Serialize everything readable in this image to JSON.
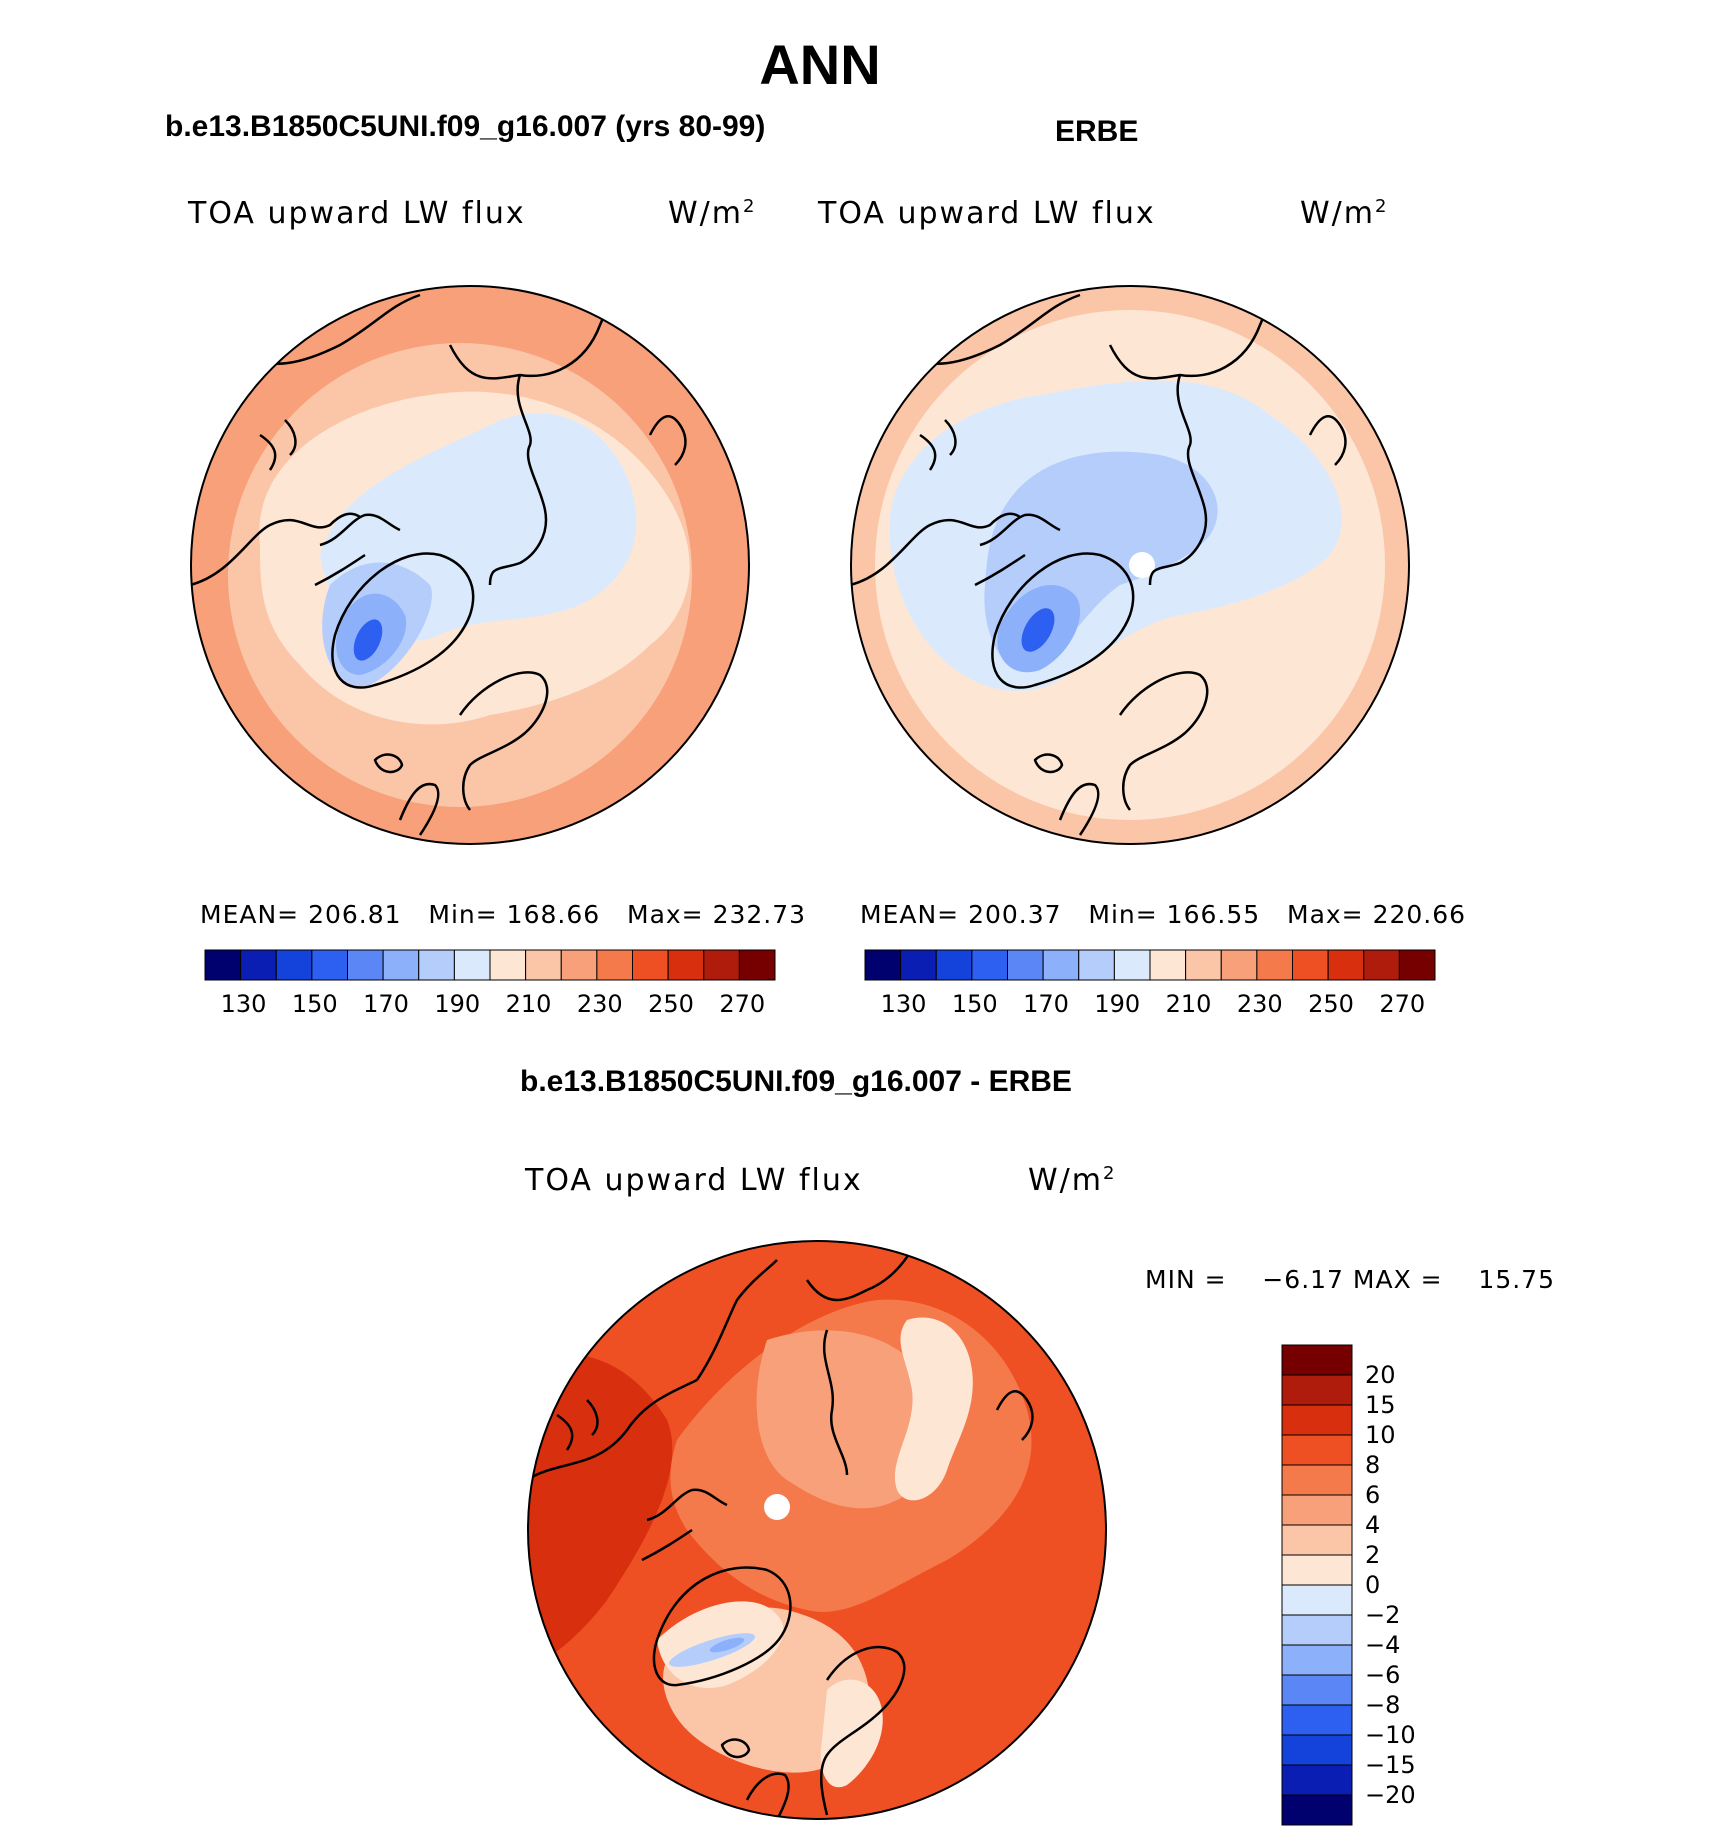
{
  "figure": {
    "season": "ANN",
    "colors": {
      "seq": [
        "#00006e",
        "#0a1eb4",
        "#1443dc",
        "#2d5ff0",
        "#5a87f5",
        "#8cb0fa",
        "#b5cdfb",
        "#daeafc",
        "#fde7d4",
        "#fbc6a8",
        "#f7a07a",
        "#f47a4c",
        "#ee4f23",
        "#d82f0f",
        "#b01c0c",
        "#760000"
      ],
      "diff": [
        "#00006e",
        "#0a1eb4",
        "#1443dc",
        "#2d5ff0",
        "#5a87f5",
        "#8cb0fa",
        "#b5cdfb",
        "#daeafc",
        "#fde7d4",
        "#fbc6a8",
        "#f7a07a",
        "#f47a4c",
        "#ee4f23",
        "#d82f0f",
        "#b01c0c",
        "#760000"
      ],
      "coast": "#000000",
      "missing": "#ffffff"
    }
  },
  "panels": [
    {
      "id": "model",
      "header": "b.e13.B1850C5UNI.f09_g16.007 (yrs 80-99)",
      "variable": "TOA upward LW flux",
      "units": "W/m",
      "units_exp": "2",
      "stats": {
        "mean_label": "MEAN=",
        "mean": "206.81",
        "min_label": "Min=",
        "min": "168.66",
        "max_label": "Max=",
        "max": "232.73"
      },
      "colorbar_ticks": [
        "130",
        "150",
        "170",
        "190",
        "210",
        "230",
        "250",
        "270"
      ]
    },
    {
      "id": "obs",
      "header": "ERBE",
      "variable": "TOA upward LW flux",
      "units": "W/m",
      "units_exp": "2",
      "stats": {
        "mean_label": "MEAN=",
        "mean": "200.37",
        "min_label": "Min=",
        "min": "166.55",
        "max_label": "Max=",
        "max": "220.66"
      },
      "colorbar_ticks": [
        "130",
        "150",
        "170",
        "190",
        "210",
        "230",
        "250",
        "270"
      ]
    }
  ],
  "difference": {
    "header": "b.e13.B1850C5UNI.f09_g16.007 - ERBE",
    "variable": "TOA upward LW flux",
    "units": "W/m",
    "units_exp": "2",
    "range_text": {
      "min_label": "MIN =",
      "min": "−6.17",
      "max_label": "MAX =",
      "max": "15.75"
    },
    "colorbar_levels": [
      "20",
      "15",
      "10",
      "8",
      "6",
      "4",
      "2",
      "0",
      "−2",
      "−4",
      "−6",
      "−8",
      "−10",
      "−15",
      "−20"
    ]
  },
  "chart_data": {
    "type": "heatmap",
    "projection": "north polar stereographic",
    "maps": [
      {
        "name": "b.e13.B1850C5UNI.f09_g16.007 (yrs 80-99)",
        "mean": 206.81,
        "min": 168.66,
        "max": 232.73,
        "contour_levels": [
          130,
          140,
          150,
          160,
          170,
          180,
          190,
          200,
          210,
          220,
          230,
          240,
          250,
          260,
          270
        ]
      },
      {
        "name": "ERBE",
        "mean": 200.37,
        "min": 166.55,
        "max": 220.66,
        "contour_levels": [
          130,
          140,
          150,
          160,
          170,
          180,
          190,
          200,
          210,
          220,
          230,
          240,
          250,
          260,
          270
        ]
      },
      {
        "name": "b.e13.B1850C5UNI.f09_g16.007 - ERBE",
        "min": -6.17,
        "max": 15.75,
        "contour_levels": [
          -20,
          -15,
          -10,
          -8,
          -6,
          -4,
          -2,
          0,
          2,
          4,
          6,
          8,
          10,
          15,
          20
        ]
      }
    ]
  }
}
